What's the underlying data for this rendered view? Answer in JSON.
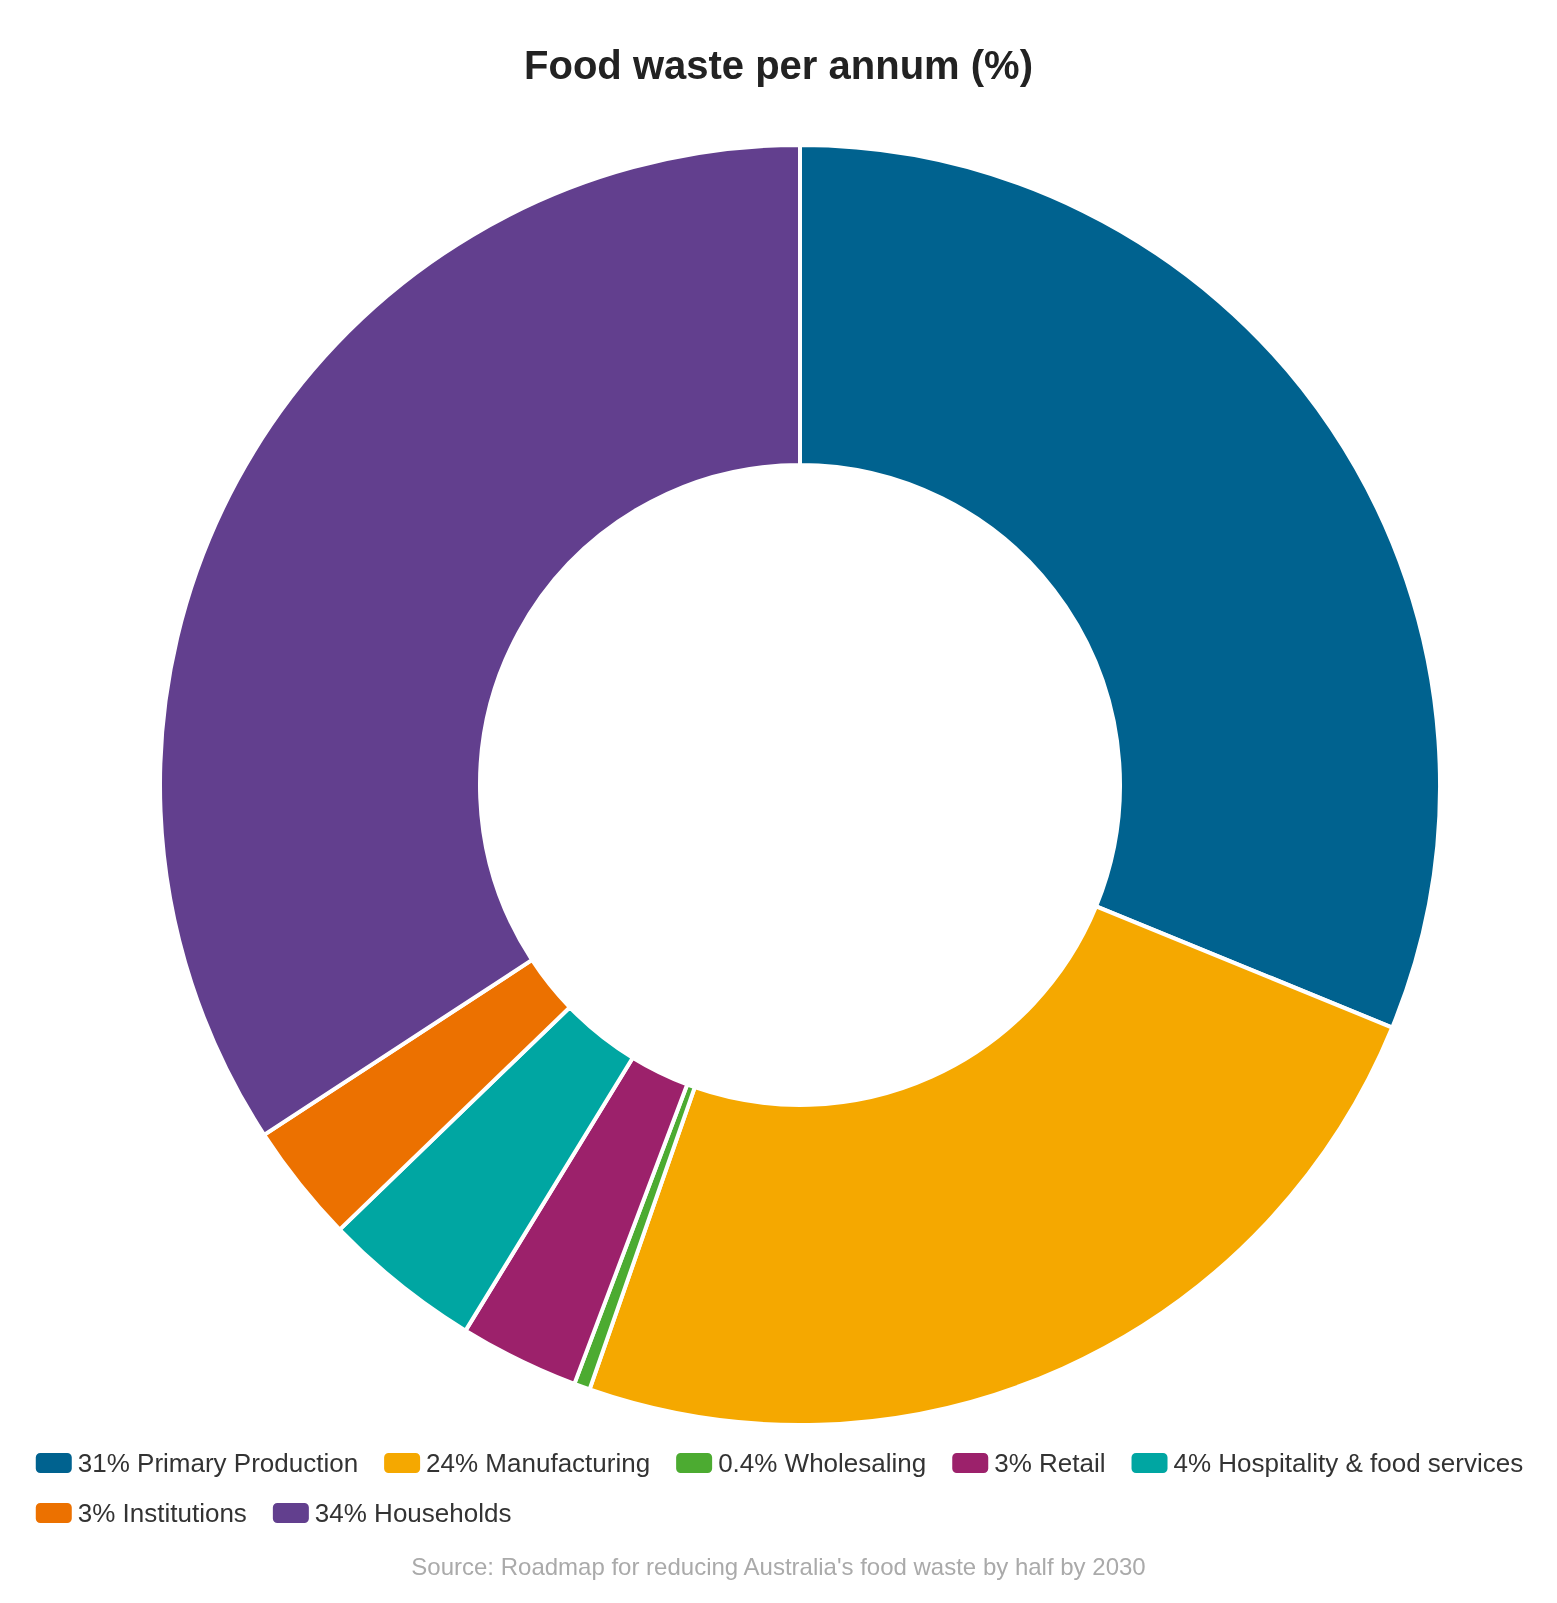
{
  "chart_data": {
    "type": "donut",
    "title": "Food waste per annum (%)",
    "categories": [
      "31% Primary Production",
      "24% Manufacturing",
      "0.4% Wholesaling",
      "3% Retail",
      "4% Hospitality & food services",
      "3% Institutions",
      "34% Households"
    ],
    "values": [
      31,
      24,
      0.4,
      3,
      4,
      3,
      34
    ],
    "colors": [
      "#00628f",
      "#f5a800",
      "#4cab31",
      "#9c216b",
      "#00a6a2",
      "#ec7100",
      "#623f8e"
    ],
    "legend": "bottom",
    "annotations": [
      "Source: Roadmap for reducing Australia's food waste by half by 2030"
    ]
  }
}
